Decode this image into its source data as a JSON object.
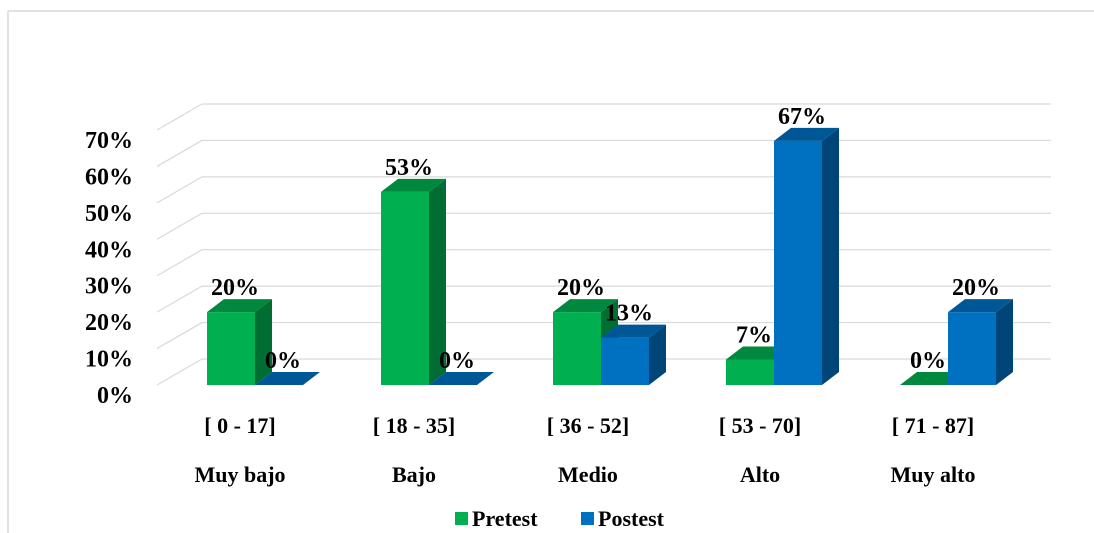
{
  "chart_data": {
    "type": "bar",
    "title": "",
    "xlabel": "",
    "ylabel": "",
    "categories": [
      "[ 0 - 17]",
      "[ 18 - 35]",
      "[ 36 - 52]",
      "[ 53 - 70]",
      "[ 71 - 87]"
    ],
    "category_levels": [
      "Muy bajo",
      "Bajo",
      "Medio",
      "Alto",
      "Muy alto"
    ],
    "y_ticks": [
      "0%",
      "10%",
      "20%",
      "30%",
      "40%",
      "50%",
      "60%",
      "70%"
    ],
    "ylim": [
      0,
      70
    ],
    "grid": true,
    "three_d": true,
    "legend_position": "bottom",
    "series": [
      {
        "name": "Pretest",
        "color": "#00b050",
        "values": [
          20,
          53,
          20,
          7,
          0
        ],
        "labels": [
          "20%",
          "53%",
          "20%",
          "7%",
          "0%"
        ]
      },
      {
        "name": "Postest",
        "color": "#0070c0",
        "values": [
          0,
          0,
          13,
          67,
          20
        ],
        "labels": [
          "0%",
          "0%",
          "13%",
          "67%",
          "20%"
        ]
      }
    ]
  }
}
